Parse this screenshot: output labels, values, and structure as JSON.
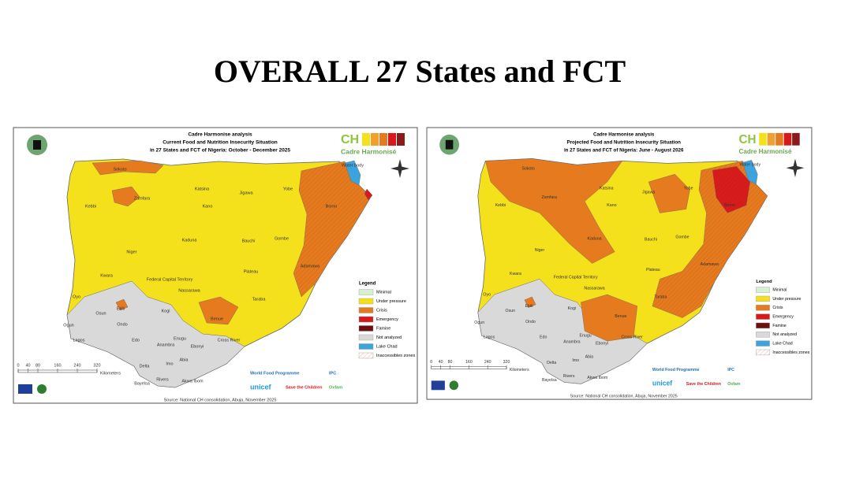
{
  "title": "OVERALL 27 States and FCT",
  "maps": [
    {
      "header": [
        "Cadre Harmonise analysis",
        "Current Food and Nutrition Insecurity Situation",
        "in 27 States and FCT of Nigeria: October - December 2025"
      ],
      "logo": {
        "initials": "CH",
        "name": "Cadre Harmonisé"
      },
      "states": [
        "Sokoto",
        "Zamfara",
        "Katsina",
        "Kano",
        "Jigawa",
        "Yobe",
        "Borno",
        "Kebbi",
        "Kaduna",
        "Bauchi",
        "Gombe",
        "Niger",
        "Plateau",
        "Adamawa",
        "Kwara",
        "Federal Capital Territory",
        "Nassarawa",
        "Taraba",
        "Oyo",
        "Osun",
        "Ekiti",
        "Kogi",
        "Benue",
        "Ogun",
        "Ondo",
        "Edo",
        "Enugu",
        "Ebonyi",
        "Anambra",
        "Cross River",
        "Lagos",
        "Delta",
        "Imo",
        "Abia",
        "Rivers",
        "Akwa Ibom",
        "Bayelsa",
        "Water body"
      ],
      "legend": {
        "title": "Legend",
        "items": [
          {
            "label": "Minimal",
            "color": "#d4f2d0"
          },
          {
            "label": "Under pressure",
            "color": "#f5e01c"
          },
          {
            "label": "Crisis",
            "color": "#e57a1e"
          },
          {
            "label": "Emergency",
            "color": "#d7191c"
          },
          {
            "label": "Famine",
            "color": "#6b0f0f"
          },
          {
            "label": "Not analyzed",
            "color": "#d9d9d9"
          },
          {
            "label": "Lake Chad",
            "color": "#3da3dc"
          },
          {
            "label": "Inaccessibles zones",
            "color": "#ffffff"
          }
        ]
      },
      "scale": {
        "ticks": [
          0,
          40,
          80,
          160,
          240,
          320
        ],
        "unit": "Kilometers"
      },
      "partners": [
        "World Food Programme",
        "IPC",
        "unicef",
        "Save the Children",
        "Oxfam"
      ],
      "source": "Source: National CH consolidation, Abuja, November 2025"
    },
    {
      "header": [
        "Cadre Harmonise analysis",
        "Projected Food and Nutrition Insecurity Situation",
        "in 27 States and FCT of Nigeria: June - August 2026"
      ],
      "logo": {
        "initials": "CH",
        "name": "Cadre Harmonisé"
      },
      "states": [
        "Sokoto",
        "Zamfara",
        "Katsina",
        "Kano",
        "Jigawa",
        "Yobe",
        "Borno",
        "Kebbi",
        "Kaduna",
        "Bauchi",
        "Gombe",
        "Niger",
        "Plateau",
        "Adamawa",
        "Kwara",
        "Federal Capital Territory",
        "Nassarawa",
        "Taraba",
        "Oyo",
        "Osun",
        "Ekiti",
        "Kogi",
        "Benue",
        "Ogun",
        "Ondo",
        "Edo",
        "Enugu",
        "Ebonyi",
        "Anambra",
        "Cross River",
        "Lagos",
        "Delta",
        "Imo",
        "Abia",
        "Rivers",
        "Akwa Ibom",
        "Bayelsa",
        "Water body"
      ],
      "legend": {
        "title": "Legend",
        "items": [
          {
            "label": "Minimal",
            "color": "#d4f2d0"
          },
          {
            "label": "Under pressure",
            "color": "#f5e01c"
          },
          {
            "label": "Crisis",
            "color": "#e57a1e"
          },
          {
            "label": "Emergency",
            "color": "#d7191c"
          },
          {
            "label": "Famine",
            "color": "#6b0f0f"
          },
          {
            "label": "Not analyzed",
            "color": "#d9d9d9"
          },
          {
            "label": "Lake Chad",
            "color": "#3da3dc"
          },
          {
            "label": "Inaccessibles zones",
            "color": "#ffffff"
          }
        ]
      },
      "scale": {
        "ticks": [
          0,
          40,
          80,
          160,
          240,
          320
        ],
        "unit": "Kilometers"
      },
      "partners": [
        "World Food Programme",
        "IPC",
        "unicef",
        "Save the Children",
        "Oxfam"
      ],
      "source": "Source: National CH consolidation, Abuja, November 2025"
    }
  ]
}
